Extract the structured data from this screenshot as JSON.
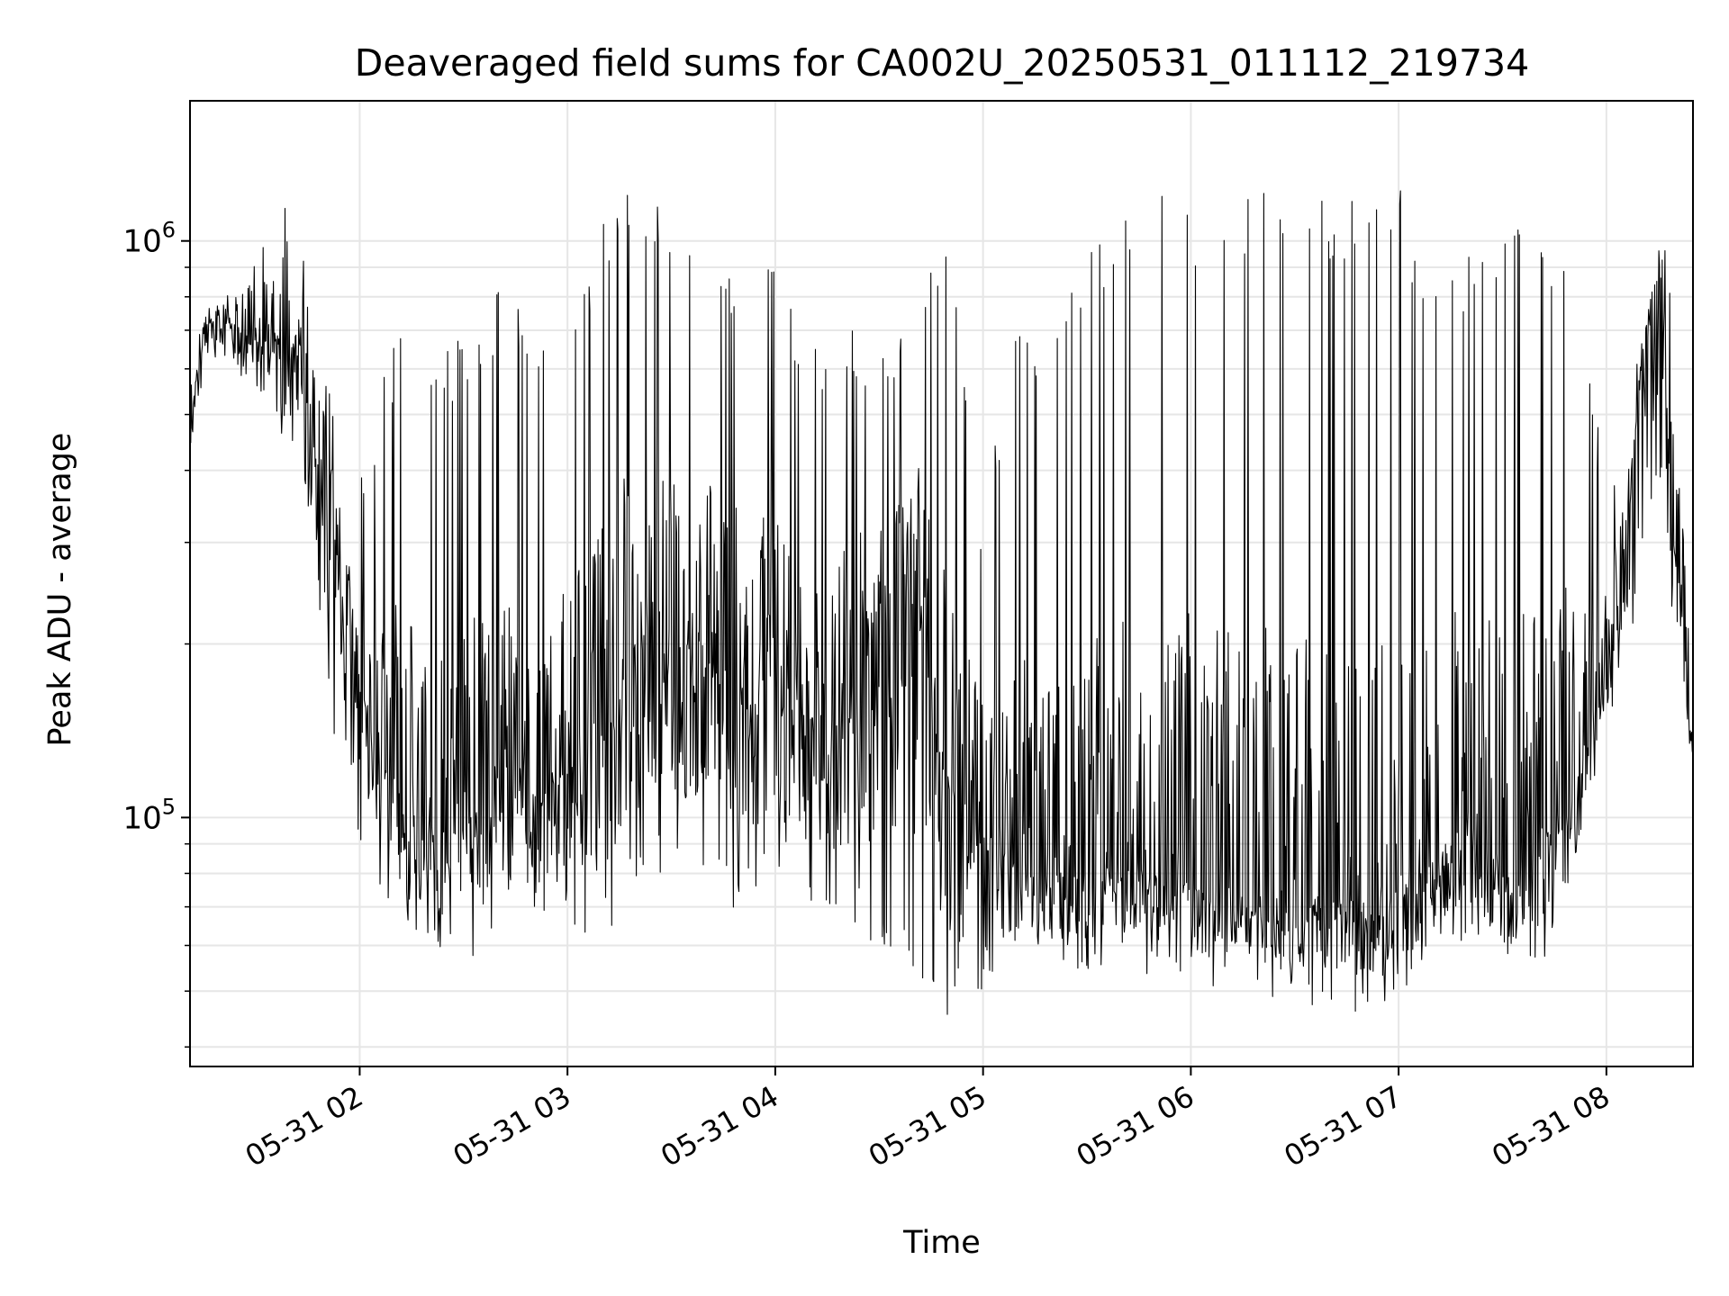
{
  "chart_data": {
    "type": "line",
    "title": "Deaveraged field sums for CA002U_20250531_011112_219734",
    "xlabel": "Time",
    "ylabel": "Peak ADU - average",
    "yscale": "log",
    "grid": true,
    "legend": "none",
    "line_color": "#000000",
    "grid_color": "#e6e6e6",
    "xlim": [
      "2025-05-31 01:11",
      "2025-05-31 08:25"
    ],
    "ylim": [
      37000,
      1750000
    ],
    "x_ticks": [
      {
        "value": "2025-05-31 02:00",
        "label": "05-31 02"
      },
      {
        "value": "2025-05-31 03:00",
        "label": "05-31 03"
      },
      {
        "value": "2025-05-31 04:00",
        "label": "05-31 04"
      },
      {
        "value": "2025-05-31 05:00",
        "label": "05-31 05"
      },
      {
        "value": "2025-05-31 06:00",
        "label": "05-31 06"
      },
      {
        "value": "2025-05-31 07:00",
        "label": "05-31 07"
      },
      {
        "value": "2025-05-31 08:00",
        "label": "05-31 08"
      }
    ],
    "y_ticks": [
      {
        "value": 100000,
        "base": "10",
        "exp": "5"
      },
      {
        "value": 1000000,
        "base": "10",
        "exp": "6"
      }
    ],
    "series": [
      {
        "x": [
          "2025-05-31 01:11",
          "2025-05-31 01:15",
          "2025-05-31 01:20",
          "2025-05-31 01:25",
          "2025-05-31 01:30",
          "2025-05-31 01:35",
          "2025-05-31 01:40",
          "2025-05-31 01:45",
          "2025-05-31 01:50",
          "2025-05-31 01:55",
          "2025-05-31 02:00",
          "2025-05-31 02:10",
          "2025-05-31 02:20",
          "2025-05-31 02:30",
          "2025-05-31 02:40",
          "2025-05-31 02:50",
          "2025-05-31 03:00",
          "2025-05-31 03:10",
          "2025-05-31 03:20",
          "2025-05-31 03:30",
          "2025-05-31 03:40",
          "2025-05-31 03:50",
          "2025-05-31 04:00",
          "2025-05-31 04:10",
          "2025-05-31 04:20",
          "2025-05-31 04:30",
          "2025-05-31 04:40",
          "2025-05-31 04:50",
          "2025-05-31 05:00",
          "2025-05-31 05:10",
          "2025-05-31 05:20",
          "2025-05-31 05:30",
          "2025-05-31 05:40",
          "2025-05-31 05:50",
          "2025-05-31 06:00",
          "2025-05-31 06:10",
          "2025-05-31 06:20",
          "2025-05-31 06:30",
          "2025-05-31 06:40",
          "2025-05-31 06:50",
          "2025-05-31 07:00",
          "2025-05-31 07:10",
          "2025-05-31 07:20",
          "2025-05-31 07:30",
          "2025-05-31 07:40",
          "2025-05-31 07:50",
          "2025-05-31 08:00",
          "2025-05-31 08:05",
          "2025-05-31 08:10",
          "2025-05-31 08:15",
          "2025-05-31 08:20",
          "2025-05-31 08:25"
        ],
        "values": [
          500000,
          700000,
          750000,
          720000,
          700000,
          700000,
          650000,
          550000,
          420000,
          250000,
          180000,
          120000,
          100000,
          95000,
          130000,
          110000,
          130000,
          160000,
          220000,
          200000,
          220000,
          190000,
          180000,
          150000,
          160000,
          250000,
          300000,
          120000,
          95000,
          85000,
          80000,
          82000,
          85000,
          80000,
          80000,
          78000,
          75000,
          70000,
          75000,
          72000,
          75000,
          85000,
          100000,
          80000,
          90000,
          110000,
          190000,
          300000,
          600000,
          900000,
          300000,
          130000
        ],
        "upper": [
          700000,
          850000,
          900000,
          1000000,
          1200000,
          1300000,
          1100000,
          900000,
          700000,
          500000,
          400000,
          700000,
          650000,
          700000,
          850000,
          800000,
          750000,
          1150000,
          1350000,
          1050000,
          900000,
          1000000,
          900000,
          700000,
          750000,
          600000,
          900000,
          1000000,
          350000,
          800000,
          700000,
          1000000,
          1200000,
          1250000,
          1200000,
          1100000,
          1250000,
          1150000,
          1200000,
          1250000,
          1250000,
          900000,
          1000000,
          1150000,
          1100000,
          1000000,
          400000,
          500000,
          750000,
          1150000,
          1000000,
          300000
        ],
        "lower": [
          400000,
          550000,
          600000,
          550000,
          500000,
          480000,
          400000,
          300000,
          180000,
          110000,
          85000,
          65000,
          60000,
          55000,
          60000,
          70000,
          65000,
          60000,
          75000,
          80000,
          75000,
          65000,
          80000,
          70000,
          65000,
          60000,
          55000,
          45000,
          50000,
          55000,
          55000,
          52000,
          58000,
          55000,
          52000,
          55000,
          53000,
          50000,
          48000,
          46000,
          50000,
          55000,
          60000,
          55000,
          52000,
          80000,
          140000,
          180000,
          250000,
          350000,
          190000,
          120000
        ]
      }
    ]
  }
}
